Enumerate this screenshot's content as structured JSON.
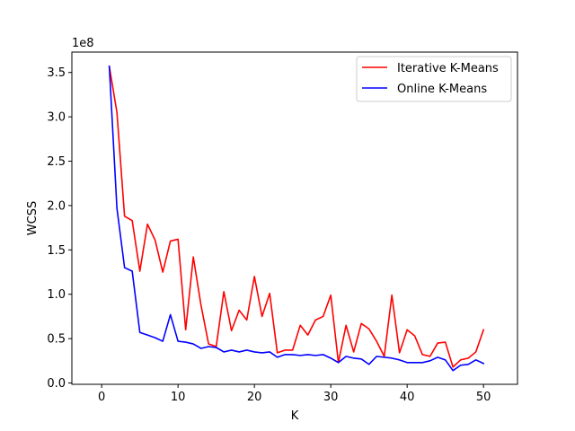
{
  "chart_data": {
    "type": "line",
    "title": "",
    "xlabel": "K",
    "ylabel": "WCSS",
    "y_scale_label": "1e8",
    "xlim": [
      -3.9,
      54.45
    ],
    "ylim": [
      -1500000,
      373000000
    ],
    "xticks": [
      0,
      10,
      20,
      30,
      40,
      50
    ],
    "yticks": [
      0,
      50000000,
      100000000,
      150000000,
      200000000,
      250000000,
      300000000,
      350000000
    ],
    "ytick_labels": [
      "0.0",
      "0.5",
      "1.0",
      "1.5",
      "2.0",
      "2.5",
      "3.0",
      "3.5"
    ],
    "grid": false,
    "legend_position": "upper right",
    "x": [
      1,
      2,
      3,
      4,
      5,
      6,
      7,
      8,
      9,
      10,
      11,
      12,
      13,
      14,
      15,
      16,
      17,
      18,
      19,
      20,
      21,
      22,
      23,
      24,
      25,
      26,
      27,
      28,
      29,
      30,
      31,
      32,
      33,
      34,
      35,
      36,
      37,
      38,
      39,
      40,
      41,
      42,
      43,
      44,
      45,
      46,
      47,
      48,
      49,
      50
    ],
    "series": [
      {
        "name": "Iterative K-Means",
        "color": "#ff0000",
        "values": [
          357000000,
          305000000,
          188000000,
          183000000,
          126000000,
          179000000,
          161000000,
          125000000,
          160000000,
          162000000,
          60000000,
          142000000,
          88000000,
          44000000,
          41000000,
          103000000,
          59000000,
          82000000,
          71000000,
          120000000,
          75000000,
          101000000,
          34000000,
          37000000,
          37000000,
          65000000,
          54000000,
          71000000,
          75000000,
          99000000,
          23000000,
          65000000,
          35000000,
          67000000,
          61000000,
          47000000,
          30000000,
          99000000,
          34000000,
          60000000,
          53000000,
          32000000,
          30000000,
          45000000,
          46000000,
          18000000,
          26000000,
          28000000,
          35000000,
          60000000
        ]
      },
      {
        "name": "Online K-Means",
        "color": "#0000ff",
        "values": [
          357000000,
          197000000,
          130000000,
          126000000,
          57000000,
          54000000,
          51000000,
          47000000,
          77000000,
          47000000,
          46000000,
          44000000,
          39000000,
          41000000,
          40000000,
          35000000,
          37000000,
          35000000,
          37000000,
          35000000,
          34000000,
          35000000,
          29000000,
          32000000,
          32000000,
          31000000,
          32000000,
          31000000,
          32000000,
          28000000,
          23000000,
          30000000,
          28000000,
          27000000,
          21000000,
          30000000,
          29000000,
          28000000,
          26000000,
          23000000,
          23000000,
          23000000,
          25000000,
          29000000,
          26000000,
          14000000,
          20000000,
          21000000,
          26000000,
          22000000
        ]
      }
    ]
  }
}
